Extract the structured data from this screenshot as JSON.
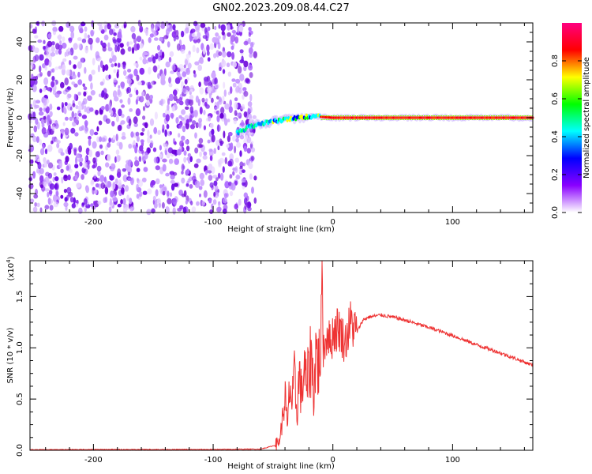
{
  "figure": {
    "title": "GN02.2023.209.08.44.C27"
  },
  "chart_data": [
    {
      "type": "heatmap",
      "xlabel": "Height of straight line (km)",
      "ylabel": "Frequency (Hz)",
      "xlim": [
        -253,
        167
      ],
      "ylim": [
        -50,
        50
      ],
      "xticks": [
        -200,
        -100,
        0,
        100
      ],
      "xtick_labels": [
        "-200",
        "-100",
        "0",
        "100"
      ],
      "yticks": [
        -40,
        -20,
        0,
        20,
        40
      ],
      "ytick_labels": [
        "-40",
        "-20",
        "0",
        "20",
        "40"
      ],
      "noise_region_x": [
        -253,
        -70
      ],
      "signal_line": {
        "x": [
          -80,
          -70,
          -60,
          -50,
          -40,
          -30,
          -20,
          -10,
          0,
          20,
          40,
          100,
          167
        ],
        "freq": [
          -8,
          -5,
          -3,
          -2,
          -1,
          0,
          0.5,
          0.5,
          0,
          0,
          0,
          0,
          0
        ]
      },
      "colorbar": {
        "label": "Normalized spectral amplitude",
        "range": [
          0,
          1
        ],
        "ticks": [
          0.0,
          0.2,
          0.4,
          0.6,
          0.8
        ],
        "tick_labels": [
          "0.0",
          "0.2",
          "0.4",
          "0.6",
          "0.8"
        ],
        "colors": [
          "#ffffff",
          "#8a00ff",
          "#0000ff",
          "#00ffff",
          "#00ff00",
          "#ffff00",
          "#ff0000",
          "#ff0080"
        ]
      }
    },
    {
      "type": "line",
      "xlabel": "Height of straight line (km)",
      "ylabel": "SNR (10 * v/v)",
      "yscale_label": "(x10",
      "yscale_exp": "4",
      "yscale_close": ")",
      "xlim": [
        -253,
        167
      ],
      "ylim": [
        0,
        1.85
      ],
      "xticks": [
        -200,
        -100,
        0,
        100
      ],
      "xtick_labels": [
        "-200",
        "-100",
        "0",
        "100"
      ],
      "yticks": [
        0.0,
        0.5,
        1.0,
        1.5
      ],
      "ytick_labels": [
        "0.0",
        "0.5",
        "1.0",
        "1.5"
      ],
      "series": [
        {
          "color": "#ee3333",
          "x": [
            -253,
            -200,
            -150,
            -100,
            -60,
            -48,
            -45,
            -42,
            -40,
            -38,
            -36,
            -34,
            -32,
            -30,
            -28,
            -26,
            -24,
            -22,
            -20,
            -18,
            -16,
            -14,
            -12,
            -10,
            -9,
            -8,
            -6,
            -4,
            -2,
            0,
            5,
            10,
            15,
            20,
            25,
            30,
            40,
            50,
            60,
            80,
            100,
            120,
            140,
            167
          ],
          "y": [
            0.005,
            0.008,
            0.008,
            0.008,
            0.012,
            0.05,
            0.08,
            0.3,
            0.55,
            0.2,
            0.65,
            0.45,
            0.7,
            0.35,
            0.75,
            0.5,
            0.85,
            0.6,
            0.78,
            0.95,
            0.55,
            1.0,
            0.8,
            1.1,
            1.85,
            1.0,
            1.05,
            1.2,
            1.0,
            1.15,
            1.2,
            1.05,
            1.25,
            1.15,
            1.27,
            1.3,
            1.32,
            1.3,
            1.27,
            1.2,
            1.12,
            1.03,
            0.95,
            0.83
          ]
        }
      ]
    }
  ]
}
